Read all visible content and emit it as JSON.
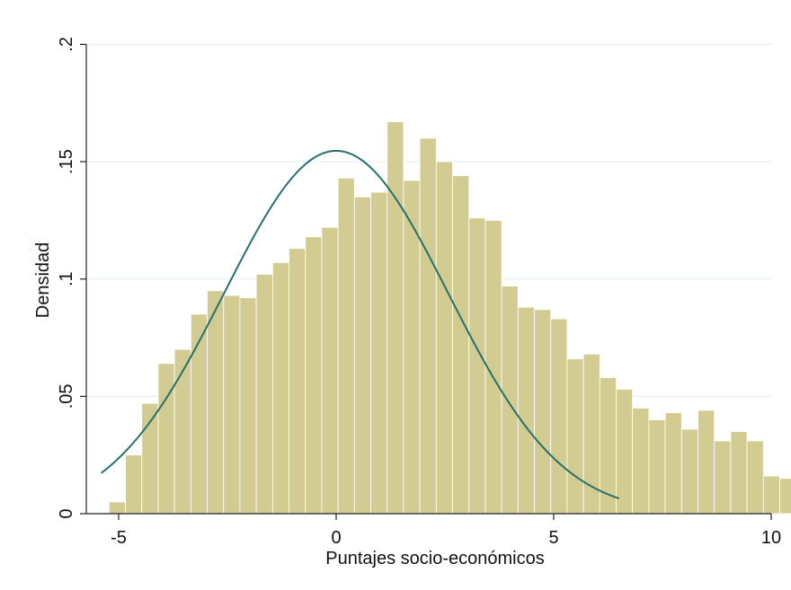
{
  "chart_data": {
    "type": "bar",
    "xlabel": "Puntajes socio-económicos",
    "ylabel": "Densidad",
    "xlim": [
      -5.5,
      10.3
    ],
    "ylim": [
      0,
      0.2
    ],
    "x_ticks": [
      -5,
      0,
      5,
      10
    ],
    "x_tick_labels": [
      "-5",
      "0",
      "5",
      "10"
    ],
    "y_ticks": [
      0,
      0.05,
      0.1,
      0.15,
      0.2
    ],
    "y_tick_labels": [
      "0",
      ".05",
      ".1",
      ".15",
      ".2"
    ],
    "grid": true,
    "bar_color": "#d3cc92",
    "bar_edge_color": "#ffffff",
    "curve_color": "#2a6f69",
    "histogram": {
      "bin_start": -5.22,
      "bin_width": 0.376,
      "densities": [
        0.005,
        0.025,
        0.047,
        0.064,
        0.07,
        0.085,
        0.095,
        0.093,
        0.092,
        0.102,
        0.107,
        0.113,
        0.118,
        0.122,
        0.143,
        0.135,
        0.137,
        0.167,
        0.142,
        0.16,
        0.15,
        0.144,
        0.126,
        0.125,
        0.097,
        0.088,
        0.087,
        0.083,
        0.066,
        0.068,
        0.058,
        0.053,
        0.045,
        0.04,
        0.043,
        0.036,
        0.044,
        0.031,
        0.035,
        0.031,
        0.016,
        0.015
      ]
    },
    "normal_curve": {
      "mean": 0.0,
      "sd": 2.58,
      "x_range": [
        -5.4,
        6.5
      ]
    }
  }
}
